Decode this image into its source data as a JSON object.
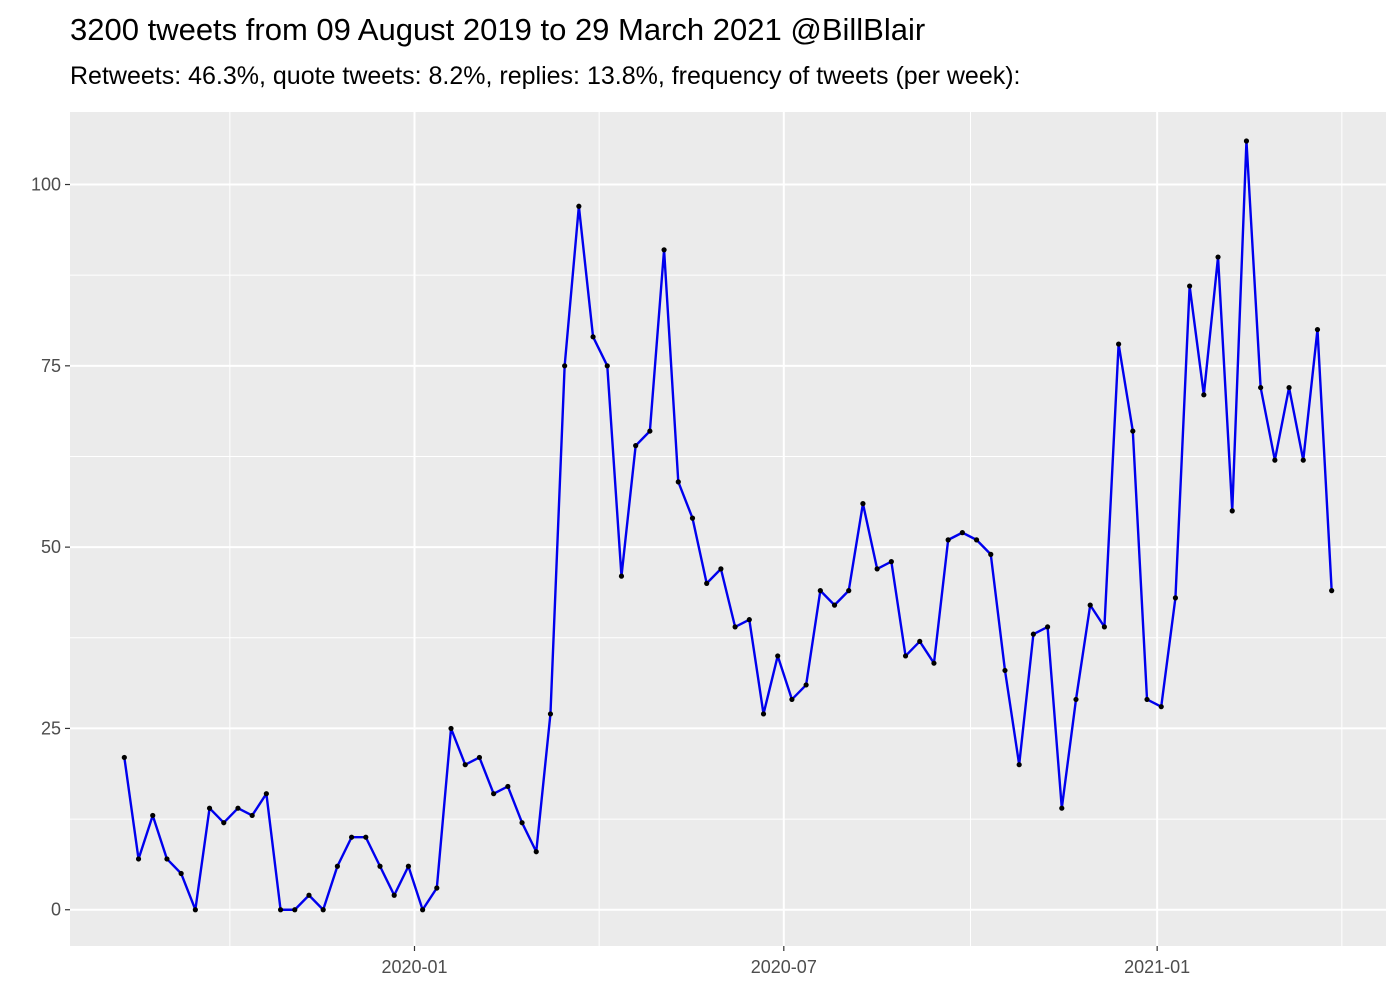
{
  "chart_data": {
    "type": "line",
    "title": "3200 tweets from 09 August 2019 to 29 March 2021 @BillBlair",
    "subtitle": "Retweets: 46.3%, quote tweets: 8.2%, replies: 13.8%, frequency of tweets (per week):",
    "xlabel": "",
    "ylabel": "",
    "ylim": [
      -5,
      110
    ],
    "grid": true,
    "x_ticks": [
      {
        "date": "2020-01-01",
        "label": "2020-01"
      },
      {
        "date": "2020-07-01",
        "label": "2020-07"
      },
      {
        "date": "2021-01-01",
        "label": "2021-01"
      }
    ],
    "y_ticks": [
      0,
      25,
      50,
      75,
      100
    ],
    "line_color": "#0000ee",
    "point_color": "#000000",
    "series": [
      {
        "x": [
          "2019-08-11",
          "2019-08-18",
          "2019-08-25",
          "2019-09-01",
          "2019-09-08",
          "2019-09-15",
          "2019-09-22",
          "2019-09-29",
          "2019-10-06",
          "2019-10-13",
          "2019-10-20",
          "2019-10-27",
          "2019-11-03",
          "2019-11-10",
          "2019-11-17",
          "2019-11-24",
          "2019-12-01",
          "2019-12-08",
          "2019-12-15",
          "2019-12-22",
          "2019-12-29",
          "2020-01-05",
          "2020-01-12",
          "2020-01-19",
          "2020-01-26",
          "2020-02-02",
          "2020-02-09",
          "2020-02-16",
          "2020-02-23",
          "2020-03-01",
          "2020-03-08",
          "2020-03-15",
          "2020-03-22",
          "2020-03-29",
          "2020-04-05",
          "2020-04-12",
          "2020-04-19",
          "2020-04-26",
          "2020-05-03",
          "2020-05-10",
          "2020-05-17",
          "2020-05-24",
          "2020-05-31",
          "2020-06-07",
          "2020-06-14",
          "2020-06-21",
          "2020-06-28",
          "2020-07-05",
          "2020-07-12",
          "2020-07-19",
          "2020-07-26",
          "2020-08-02",
          "2020-08-09",
          "2020-08-16",
          "2020-08-23",
          "2020-08-30",
          "2020-09-06",
          "2020-09-13",
          "2020-09-20",
          "2020-09-27",
          "2020-10-04",
          "2020-10-11",
          "2020-10-18",
          "2020-10-25",
          "2020-11-01",
          "2020-11-08",
          "2020-11-15",
          "2020-11-22",
          "2020-11-29",
          "2020-12-06",
          "2020-12-13",
          "2020-12-20",
          "2020-12-27",
          "2021-01-03",
          "2021-01-10",
          "2021-01-17",
          "2021-01-24",
          "2021-01-31",
          "2021-02-07",
          "2021-02-14",
          "2021-02-21",
          "2021-02-28",
          "2021-03-07",
          "2021-03-14",
          "2021-03-21",
          "2021-03-28"
        ],
        "values": [
          21,
          7,
          13,
          7,
          5,
          0,
          14,
          12,
          14,
          13,
          16,
          0,
          0,
          2,
          0,
          6,
          10,
          10,
          6,
          2,
          6,
          0,
          3,
          25,
          20,
          21,
          16,
          17,
          12,
          8,
          27,
          75,
          97,
          79,
          75,
          46,
          64,
          66,
          91,
          59,
          54,
          45,
          47,
          39,
          40,
          27,
          35,
          29,
          31,
          44,
          42,
          44,
          56,
          47,
          48,
          35,
          37,
          34,
          51,
          52,
          51,
          49,
          33,
          20,
          38,
          39,
          14,
          29,
          42,
          39,
          78,
          66,
          29,
          28,
          43,
          86,
          71,
          90,
          55,
          106,
          72,
          62,
          72,
          62,
          80,
          44
        ]
      }
    ]
  }
}
